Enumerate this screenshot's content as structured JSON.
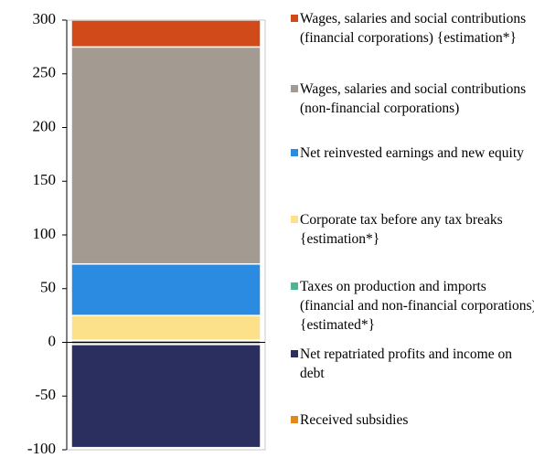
{
  "chart_data": {
    "type": "stacked-bar",
    "categories": [
      null
    ],
    "series": [
      {
        "name": "Wages, salaries and social contributions (financial corporations) {estimation*}",
        "color": "#d04a1a",
        "values": [
          25
        ]
      },
      {
        "name": "Wages, salaries and social contributions (non-financial corporations)",
        "color": "#a39a92",
        "values": [
          202
        ]
      },
      {
        "name": "Net reinvested earnings and new equity",
        "color": "#2b8be0",
        "values": [
          48
        ]
      },
      {
        "name": "Corporate tax before any tax breaks {estimation*}",
        "color": "#fde08a",
        "values": [
          23
        ]
      },
      {
        "name": "Taxes on production and imports (financial and non-financial corporations) {estimated*}",
        "color": "#4cb596",
        "values": [
          2
        ]
      },
      {
        "name": "Net repatriated profits and income on debt",
        "color": "#2a2f5f",
        "values": [
          -96
        ]
      },
      {
        "name": "Received subsidies",
        "color": "#e08a1e",
        "values": [
          -2
        ]
      }
    ],
    "ylim": [
      -100,
      300
    ],
    "yticks": [
      -100,
      -50,
      0,
      50,
      100,
      150,
      200,
      250,
      300
    ]
  }
}
